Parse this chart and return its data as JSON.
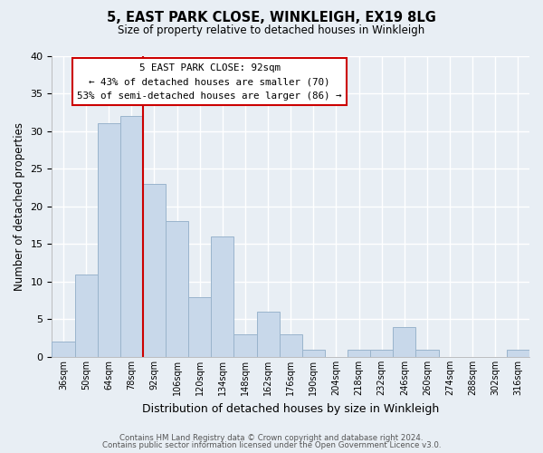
{
  "title": "5, EAST PARK CLOSE, WINKLEIGH, EX19 8LG",
  "subtitle": "Size of property relative to detached houses in Winkleigh",
  "xlabel": "Distribution of detached houses by size in Winkleigh",
  "ylabel": "Number of detached properties",
  "bin_labels": [
    "36sqm",
    "50sqm",
    "64sqm",
    "78sqm",
    "92sqm",
    "106sqm",
    "120sqm",
    "134sqm",
    "148sqm",
    "162sqm",
    "176sqm",
    "190sqm",
    "204sqm",
    "218sqm",
    "232sqm",
    "246sqm",
    "260sqm",
    "274sqm",
    "288sqm",
    "302sqm",
    "316sqm"
  ],
  "bar_heights": [
    2,
    11,
    31,
    32,
    23,
    18,
    8,
    16,
    3,
    6,
    3,
    1,
    0,
    1,
    1,
    4,
    1,
    0,
    0,
    0,
    1
  ],
  "bar_color": "#c8d8ea",
  "bar_edge_color": "#9ab4cc",
  "vline_index": 4,
  "vline_color": "#cc0000",
  "ylim": [
    0,
    40
  ],
  "yticks": [
    0,
    5,
    10,
    15,
    20,
    25,
    30,
    35,
    40
  ],
  "annotation_title": "5 EAST PARK CLOSE: 92sqm",
  "annotation_line1": "← 43% of detached houses are smaller (70)",
  "annotation_line2": "53% of semi-detached houses are larger (86) →",
  "annotation_box_color": "#ffffff",
  "annotation_box_edge": "#cc0000",
  "footer_line1": "Contains HM Land Registry data © Crown copyright and database right 2024.",
  "footer_line2": "Contains public sector information licensed under the Open Government Licence v3.0.",
  "background_color": "#e8eef4",
  "grid_color": "#ffffff",
  "plot_bg_color": "#e8eef4"
}
